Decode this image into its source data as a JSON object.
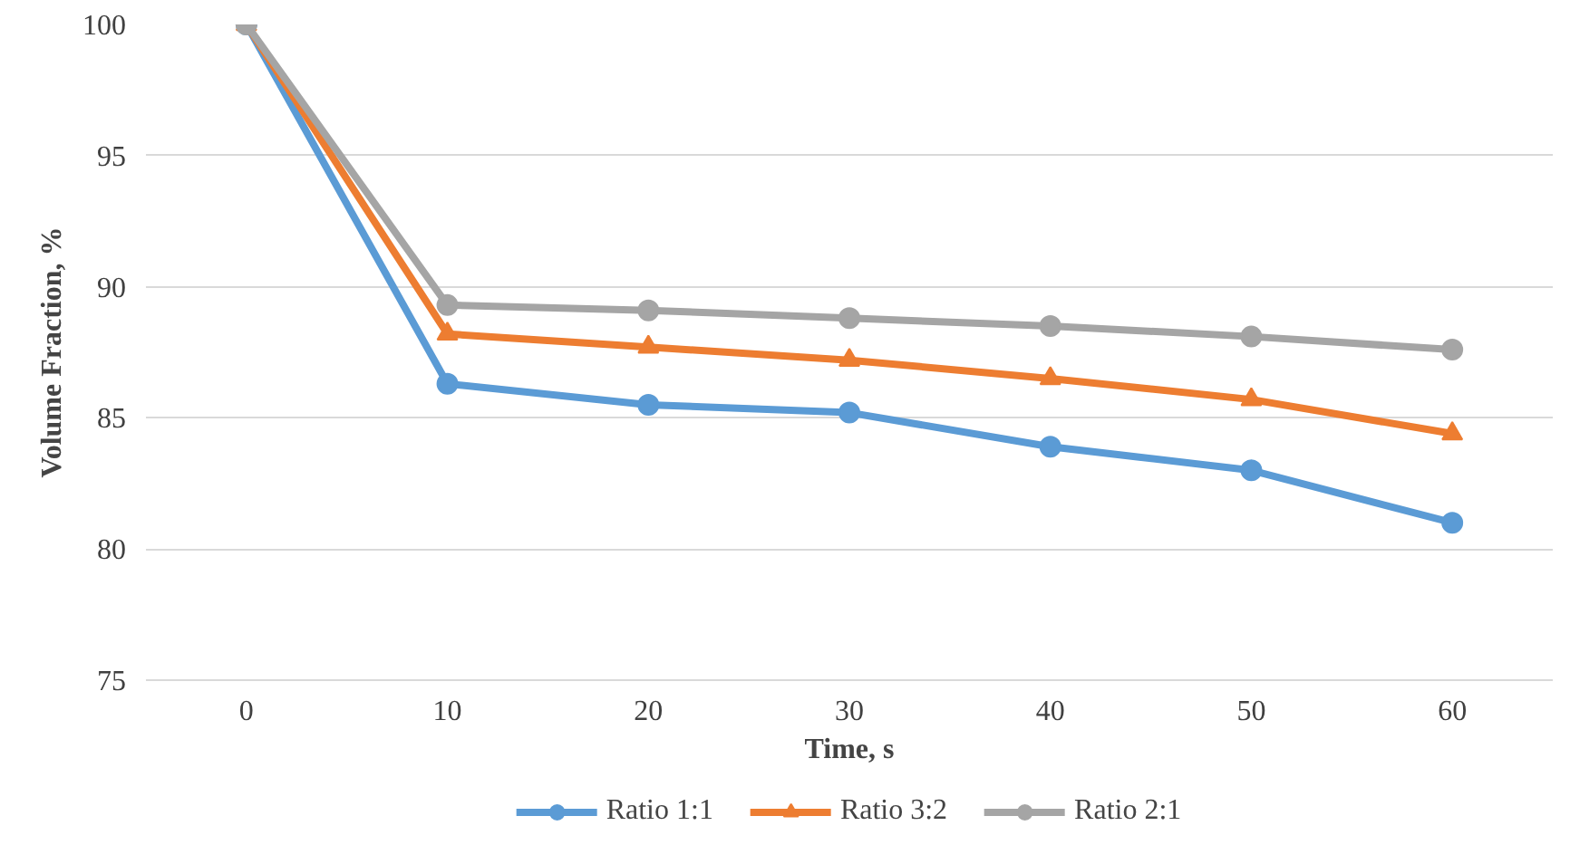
{
  "chart_data": {
    "type": "line",
    "xlabel": "Time, s",
    "ylabel": "Volume Fraction, %",
    "categories": [
      "0",
      "10",
      "20",
      "30",
      "40",
      "50",
      "60"
    ],
    "ylim": [
      75,
      100
    ],
    "yticks": [
      75,
      80,
      85,
      90,
      95,
      100
    ],
    "grid": "y",
    "legend": "bottom",
    "series": [
      {
        "name": "Ratio 1:1",
        "color": "#5b9bd5",
        "marker": "circle",
        "values": [
          100,
          86.3,
          85.5,
          85.2,
          83.9,
          83.0,
          81.0
        ]
      },
      {
        "name": "Ratio 3:2",
        "color": "#ed7d31",
        "marker": "triangle",
        "values": [
          100,
          88.2,
          87.7,
          87.2,
          86.5,
          85.7,
          84.4
        ]
      },
      {
        "name": "Ratio 2:1",
        "color": "#a5a5a5",
        "marker": "circle",
        "values": [
          100,
          89.3,
          89.1,
          88.8,
          88.5,
          88.1,
          87.6
        ]
      }
    ]
  }
}
